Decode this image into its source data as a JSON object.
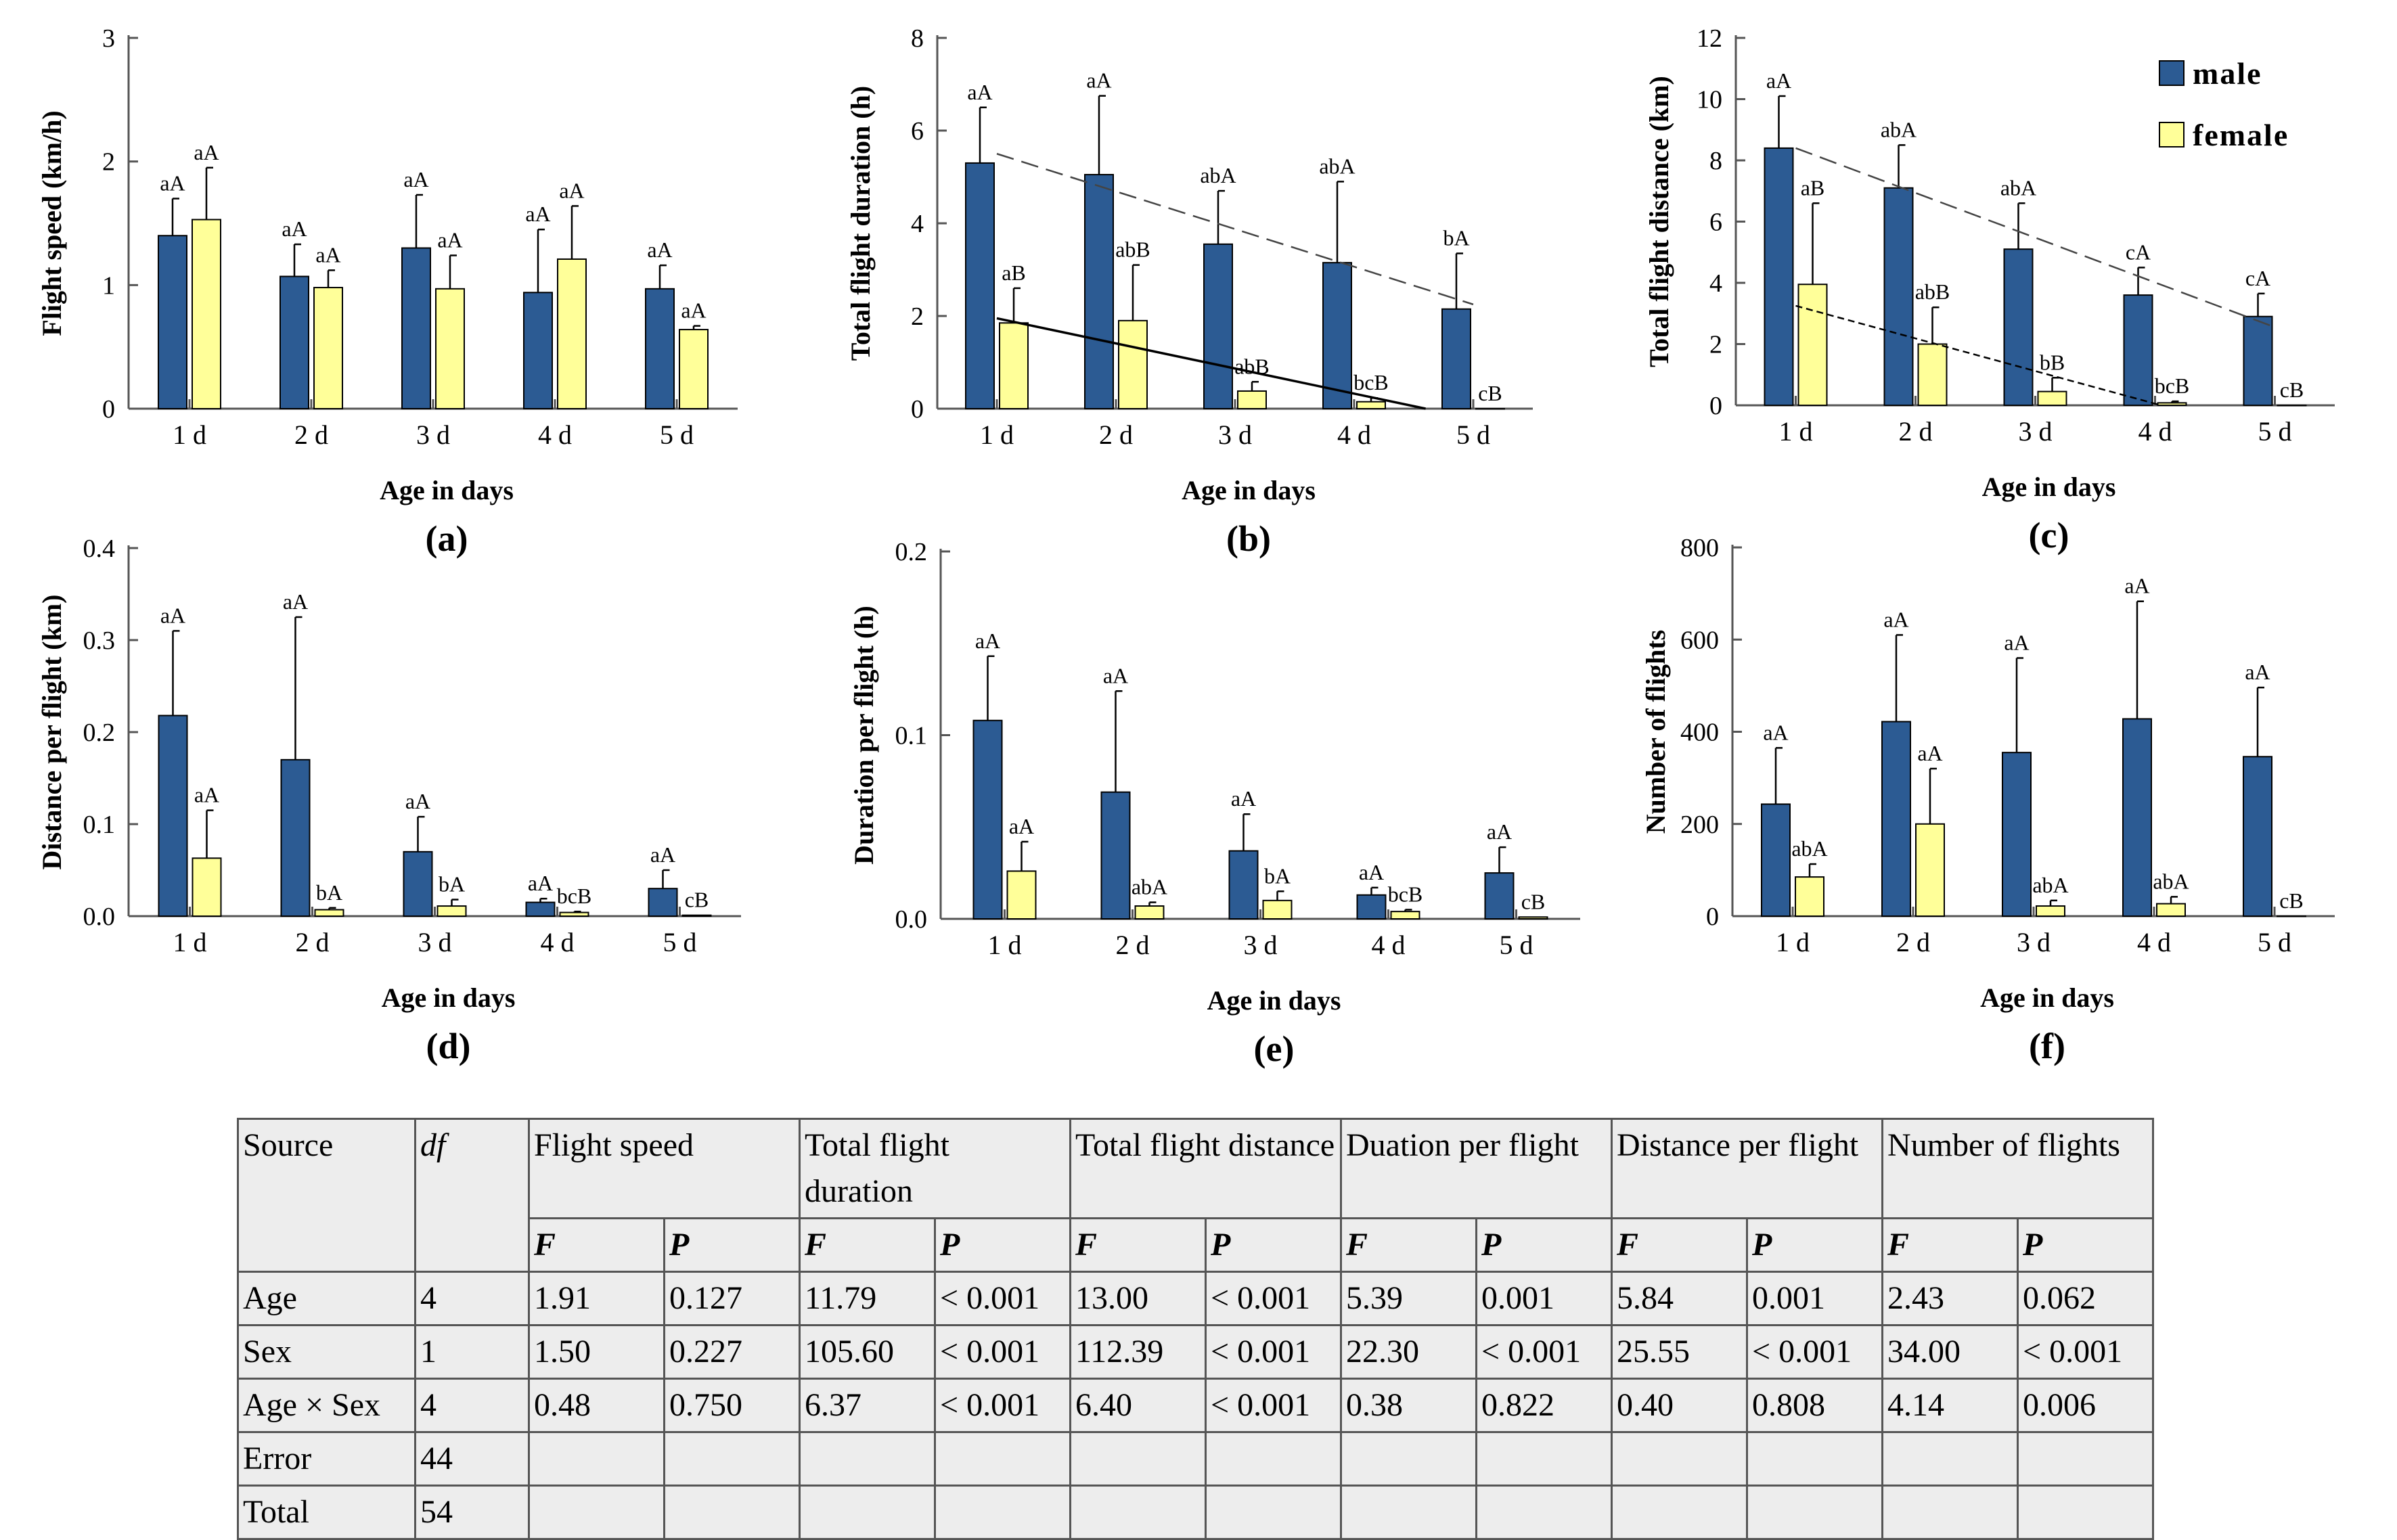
{
  "colors": {
    "male": "#2c5b93",
    "female": "#ffff99",
    "bar_stroke": "#000000",
    "axis": "#555555"
  },
  "legend": {
    "male": "male",
    "female": "female"
  },
  "chart_data": [
    {
      "type": "bar",
      "panel": "(a)",
      "title": "",
      "xlabel": "Age in days",
      "ylabel": "Flight speed (km/h)",
      "ylim": [
        0,
        3
      ],
      "yticks": [
        "0",
        "1",
        "2",
        "3"
      ],
      "categories": [
        "1 d",
        "2 d",
        "3 d",
        "4 d",
        "5 d"
      ],
      "series": [
        {
          "name": "male",
          "values": [
            1.4,
            1.07,
            1.3,
            0.94,
            0.97
          ],
          "errors": [
            0.3,
            0.26,
            0.43,
            0.51,
            0.19
          ],
          "labels": [
            "aA",
            "aA",
            "aA",
            "aA",
            "aA"
          ]
        },
        {
          "name": "female",
          "values": [
            1.53,
            0.98,
            0.97,
            1.21,
            0.64
          ],
          "errors": [
            0.42,
            0.14,
            0.27,
            0.43,
            0.03
          ],
          "labels": [
            "aA",
            "aA",
            "aA",
            "aA",
            "aA"
          ]
        }
      ],
      "trendlines": []
    },
    {
      "type": "bar",
      "panel": "(b)",
      "title": "",
      "xlabel": "Age in days",
      "ylabel": "Total flight duration (h)",
      "ylim": [
        0,
        8
      ],
      "yticks": [
        "0",
        "2",
        "4",
        "6",
        "8"
      ],
      "categories": [
        "1 d",
        "2 d",
        "3 d",
        "4 d",
        "5 d"
      ],
      "series": [
        {
          "name": "male",
          "values": [
            5.3,
            5.05,
            3.55,
            3.15,
            2.15
          ],
          "errors": [
            1.2,
            1.7,
            1.15,
            1.75,
            1.2
          ],
          "labels": [
            "aA",
            "aA",
            "abA",
            "abA",
            "bA"
          ]
        },
        {
          "name": "female",
          "values": [
            1.85,
            1.9,
            0.38,
            0.15,
            0.0
          ],
          "errors": [
            0.75,
            1.2,
            0.2,
            0.08,
            0.0
          ],
          "labels": [
            "aB",
            "abB",
            "abB",
            "bcB",
            "cB"
          ]
        }
      ],
      "trendlines": [
        {
          "series": "male",
          "style": "dashed",
          "from": [
            0,
            5.5
          ],
          "to": [
            4,
            2.25
          ]
        },
        {
          "series": "female",
          "style": "solid",
          "from": [
            0,
            1.95
          ],
          "to": [
            3.6,
            0.0
          ]
        }
      ]
    },
    {
      "type": "bar",
      "panel": "(c)",
      "title": "",
      "xlabel": "Age in days",
      "ylabel": "Total flight distance (km)",
      "ylim": [
        0,
        12
      ],
      "yticks": [
        "0",
        "2",
        "4",
        "6",
        "8",
        "10",
        "12"
      ],
      "categories": [
        "1 d",
        "2 d",
        "3 d",
        "4 d",
        "5 d"
      ],
      "series": [
        {
          "name": "male",
          "values": [
            8.4,
            7.1,
            5.1,
            3.6,
            2.9
          ],
          "errors": [
            1.7,
            1.4,
            1.5,
            0.9,
            0.75
          ],
          "labels": [
            "aA",
            "abA",
            "abA",
            "cA",
            "cA"
          ]
        },
        {
          "name": "female",
          "values": [
            3.95,
            2.0,
            0.45,
            0.08,
            0.0
          ],
          "errors": [
            2.65,
            1.2,
            0.45,
            0.05,
            0.0
          ],
          "labels": [
            "aB",
            "abB",
            "bB",
            "bcB",
            "cB"
          ]
        }
      ],
      "trendlines": [
        {
          "series": "male",
          "style": "dashed",
          "from": [
            0,
            8.4
          ],
          "to": [
            4,
            2.55
          ]
        },
        {
          "series": "female",
          "style": "dashed",
          "from": [
            0,
            3.25
          ],
          "to": [
            3.05,
            0.0
          ]
        }
      ]
    },
    {
      "type": "bar",
      "panel": "(d)",
      "title": "",
      "xlabel": "Age in days",
      "ylabel": "Distance per flight (km)",
      "ylim": [
        0,
        0.4
      ],
      "yticks": [
        "0.0",
        "0.1",
        "0.2",
        "0.3",
        "0.4"
      ],
      "categories": [
        "1 d",
        "2 d",
        "3 d",
        "4 d",
        "5 d"
      ],
      "series": [
        {
          "name": "male",
          "values": [
            0.218,
            0.17,
            0.07,
            0.015,
            0.03
          ],
          "errors": [
            0.092,
            0.155,
            0.038,
            0.004,
            0.02
          ],
          "labels": [
            "aA",
            "aA",
            "aA",
            "aA",
            "aA"
          ]
        },
        {
          "name": "female",
          "values": [
            0.063,
            0.007,
            0.011,
            0.004,
            0.001
          ],
          "errors": [
            0.052,
            0.002,
            0.007,
            0.001,
            0.0
          ],
          "labels": [
            "aA",
            "bA",
            "bA",
            "bcB",
            "cB"
          ]
        }
      ],
      "trendlines": []
    },
    {
      "type": "bar",
      "panel": "(e)",
      "title": "",
      "xlabel": "Age in days",
      "ylabel": "Duration per flight (h)",
      "ylim": [
        0,
        0.2
      ],
      "yticks": [
        "0.0",
        "0.1",
        "0.2"
      ],
      "categories": [
        "1 d",
        "2 d",
        "3 d",
        "4 d",
        "5 d"
      ],
      "series": [
        {
          "name": "male",
          "values": [
            0.108,
            0.069,
            0.037,
            0.013,
            0.025
          ],
          "errors": [
            0.035,
            0.055,
            0.02,
            0.004,
            0.014
          ],
          "labels": [
            "aA",
            "aA",
            "aA",
            "aA",
            "aA"
          ]
        },
        {
          "name": "female",
          "values": [
            0.026,
            0.007,
            0.01,
            0.004,
            0.001
          ],
          "errors": [
            0.016,
            0.002,
            0.005,
            0.001,
            0.0
          ],
          "labels": [
            "aA",
            "abA",
            "bA",
            "bcB",
            "cB"
          ]
        }
      ],
      "trendlines": []
    },
    {
      "type": "bar",
      "panel": "(f)",
      "title": "",
      "xlabel": "Age in days",
      "ylabel": "Number of flights",
      "ylim": [
        0,
        800
      ],
      "yticks": [
        "0",
        "200",
        "400",
        "600",
        "800"
      ],
      "categories": [
        "1 d",
        "2 d",
        "3 d",
        "4 d",
        "5 d"
      ],
      "series": [
        {
          "name": "male",
          "values": [
            243,
            422,
            355,
            428,
            346
          ],
          "errors": [
            122,
            188,
            205,
            255,
            150
          ],
          "labels": [
            "aA",
            "aA",
            "aA",
            "aA",
            "aA"
          ]
        },
        {
          "name": "female",
          "values": [
            85,
            200,
            22,
            27,
            0
          ],
          "errors": [
            28,
            120,
            12,
            15,
            0
          ],
          "labels": [
            "abA",
            "aA",
            "abA",
            "abA",
            "cB"
          ]
        }
      ],
      "trendlines": []
    }
  ],
  "table": {
    "header1": [
      "Source",
      "df",
      "Flight speed",
      "Total flight duration",
      "Total flight distance",
      "Duation per flight",
      "Distance per flight",
      "Number of flights"
    ],
    "subheader": [
      "F",
      "P"
    ],
    "rows": [
      {
        "source": "Age",
        "df": "4",
        "values": [
          "1.91",
          "0.127",
          "11.79",
          "< 0.001",
          "13.00",
          "< 0.001",
          "5.39",
          "0.001",
          "5.84",
          "0.001",
          "2.43",
          "0.062"
        ]
      },
      {
        "source": "Sex",
        "df": "1",
        "values": [
          "1.50",
          "0.227",
          "105.60",
          "< 0.001",
          "112.39",
          "< 0.001",
          "22.30",
          "< 0.001",
          "25.55",
          "< 0.001",
          "34.00",
          "< 0.001"
        ]
      },
      {
        "source": "Age × Sex",
        "df": "4",
        "values": [
          "0.48",
          "0.750",
          "6.37",
          "< 0.001",
          "6.40",
          "< 0.001",
          "0.38",
          "0.822",
          "0.40",
          "0.808",
          "4.14",
          "0.006"
        ]
      },
      {
        "source": "Error",
        "df": "44",
        "values": [
          "",
          "",
          "",
          "",
          "",
          "",
          "",
          "",
          "",
          "",
          "",
          ""
        ]
      },
      {
        "source": "Total",
        "df": "54",
        "values": [
          "",
          "",
          "",
          "",
          "",
          "",
          "",
          "",
          "",
          "",
          "",
          ""
        ]
      }
    ]
  }
}
